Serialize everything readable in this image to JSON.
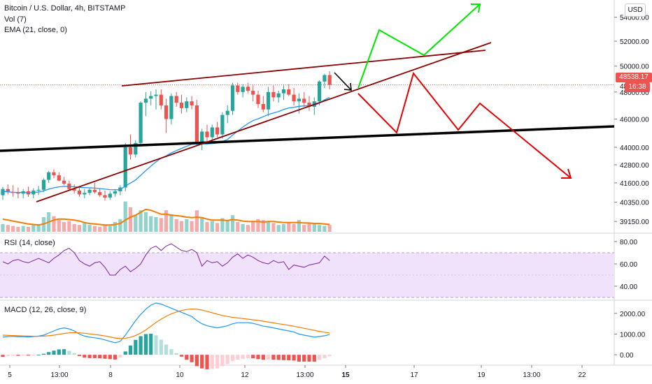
{
  "legend": {
    "main": "Bitcoin / U.S. Dollar, 4h, BITSTAMP",
    "vol": "Vol (7)",
    "ema": "EMA (21, close, 0)",
    "rsi": "RSI (14, close)",
    "macd": "MACD (12, 26, close, 9)"
  },
  "currency_button": "USD",
  "last_price_label": "48538.17",
  "countdown_label": "16:38",
  "colors": {
    "up": "#26a69a",
    "down": "#ef5350",
    "ema": "#2196f3",
    "vol_ma": "#f57c00",
    "rsi": "#7b1fa2",
    "rsi_band": "#f1e2fb",
    "macd": "#2196f3",
    "signal": "#f57c00",
    "trendline_dark_red": "#8b0000",
    "support": "#000000",
    "bull_path": "#00e600",
    "bear_path": "#e60000",
    "arrow": "#000000"
  },
  "price_axis": {
    "ticks": [
      "54000.00",
      "52000.00",
      "50000.00",
      "48000.00",
      "46000.00",
      "44000.00",
      "42800.00",
      "41600.00",
      "40350.00",
      "39150.00"
    ],
    "partial_tick_labels": [
      "5",
      "48"
    ]
  },
  "rsi_axis": {
    "ticks": [
      "80.00",
      "60.00",
      "40.00"
    ],
    "band": [
      30,
      70
    ]
  },
  "macd_axis": {
    "ticks": [
      "2000.00",
      "1000.00",
      "0.00"
    ]
  },
  "time_axis": {
    "labels": [
      "5",
      "13:00",
      "8",
      "10",
      "12",
      "13:00",
      "15",
      "17",
      "19",
      "13:00",
      "22"
    ],
    "bold": [
      "15"
    ]
  },
  "chart_data": [
    {
      "type": "candlestick",
      "title": "Bitcoin / U.S. Dollar, 4h, BITSTAMP",
      "y_scale": "log",
      "ylim": [
        38600,
        55000
      ],
      "candles": [
        [
          40800,
          41350,
          40500,
          41200
        ],
        [
          41200,
          41500,
          40850,
          41000
        ],
        [
          41000,
          41450,
          40700,
          40950
        ],
        [
          40950,
          41300,
          40600,
          40900
        ],
        [
          40900,
          41200,
          40600,
          41050
        ],
        [
          41050,
          41350,
          40700,
          40850
        ],
        [
          40850,
          41250,
          40600,
          41100
        ],
        [
          41100,
          41400,
          40800,
          41150
        ],
        [
          41150,
          41900,
          41000,
          41800
        ],
        [
          41800,
          42400,
          41600,
          42300
        ],
        [
          42300,
          42500,
          41900,
          42100
        ],
        [
          42100,
          42300,
          41700,
          41750
        ],
        [
          41750,
          42000,
          41450,
          41550
        ],
        [
          41550,
          41750,
          41150,
          41200
        ],
        [
          41200,
          41500,
          40900,
          41100
        ],
        [
          41100,
          41300,
          40700,
          40850
        ],
        [
          40850,
          41200,
          40600,
          40950
        ],
        [
          40950,
          41300,
          40800,
          41150
        ],
        [
          41150,
          41600,
          40900,
          41000
        ],
        [
          41000,
          41250,
          40700,
          40800
        ],
        [
          40800,
          41100,
          40450,
          40650
        ],
        [
          40650,
          41050,
          40500,
          40900
        ],
        [
          40900,
          41200,
          40700,
          41050
        ],
        [
          41050,
          41450,
          40800,
          41300
        ],
        [
          41300,
          44300,
          41050,
          44000
        ],
        [
          44000,
          44900,
          43150,
          43500
        ],
        [
          43500,
          44500,
          43300,
          44300
        ],
        [
          44300,
          47300,
          44100,
          47200
        ],
        [
          47200,
          48000,
          46200,
          47500
        ],
        [
          47500,
          48050,
          47000,
          47700
        ],
        [
          47700,
          48200,
          46700,
          47800
        ],
        [
          47800,
          48200,
          46700,
          47000
        ],
        [
          47000,
          47500,
          45000,
          46000
        ],
        [
          46000,
          47900,
          45600,
          47700
        ],
        [
          47700,
          48000,
          46900,
          47200
        ],
        [
          47200,
          47800,
          46400,
          46800
        ],
        [
          46800,
          47600,
          46500,
          47300
        ],
        [
          47300,
          47700,
          46700,
          47000
        ],
        [
          47000,
          47400,
          44100,
          44200
        ],
        [
          44200,
          45300,
          43800,
          45100
        ],
        [
          45100,
          45600,
          44400,
          44700
        ],
        [
          44700,
          45600,
          44300,
          45400
        ],
        [
          45400,
          45800,
          44700,
          44900
        ],
        [
          44900,
          46500,
          44600,
          46300
        ],
        [
          46300,
          47000,
          45700,
          46600
        ],
        [
          46600,
          48700,
          46300,
          48500
        ],
        [
          48500,
          48700,
          47800,
          48000
        ],
        [
          48000,
          48600,
          47600,
          48400
        ],
        [
          48400,
          48700,
          47900,
          48100
        ],
        [
          48100,
          48500,
          47300,
          47800
        ],
        [
          47800,
          48100,
          46800,
          47100
        ],
        [
          47100,
          47700,
          46500,
          46700
        ],
        [
          46700,
          48400,
          46200,
          48000
        ],
        [
          48000,
          48500,
          47300,
          47600
        ],
        [
          47600,
          48100,
          47200,
          47900
        ],
        [
          47900,
          48500,
          47400,
          48200
        ],
        [
          48200,
          48600,
          47700,
          47800
        ],
        [
          47800,
          48300,
          47000,
          47300
        ],
        [
          47300,
          47900,
          46400,
          47500
        ],
        [
          47500,
          48000,
          46900,
          47200
        ],
        [
          47200,
          47700,
          46600,
          46900
        ],
        [
          46900,
          47600,
          46300,
          47300
        ],
        [
          47300,
          48900,
          47000,
          48800
        ],
        [
          48800,
          49400,
          48300,
          49300
        ],
        [
          49300,
          49600,
          48200,
          48538
        ]
      ],
      "ema_21": [
        41050,
        41020,
        40990,
        40970,
        40980,
        40960,
        40980,
        41000,
        41080,
        41190,
        41280,
        41340,
        41370,
        41360,
        41350,
        41310,
        41290,
        41280,
        41260,
        41230,
        41190,
        41160,
        41150,
        41160,
        41400,
        41590,
        41790,
        42100,
        42410,
        42710,
        43000,
        43250,
        43410,
        43610,
        43770,
        43920,
        44070,
        44210,
        44220,
        44230,
        44230,
        44260,
        44290,
        44410,
        44540,
        44850,
        45130,
        45420,
        45670,
        45890,
        46020,
        46170,
        46330,
        46440,
        46550,
        46700,
        46810,
        46860,
        46930,
        46960,
        46980,
        47010,
        47180,
        47410,
        47600
      ]
    },
    {
      "type": "bar",
      "title": "Vol (7)",
      "volume_relative": [
        0.16,
        0.14,
        0.12,
        0.1,
        0.12,
        0.1,
        0.14,
        0.16,
        0.3,
        0.4,
        0.32,
        0.24,
        0.2,
        0.22,
        0.16,
        0.14,
        0.18,
        0.14,
        0.12,
        0.1,
        0.14,
        0.12,
        0.2,
        0.26,
        0.62,
        0.5,
        0.34,
        0.44,
        0.4,
        0.32,
        0.3,
        0.28,
        0.44,
        0.36,
        0.26,
        0.22,
        0.26,
        0.22,
        0.44,
        0.3,
        0.2,
        0.22,
        0.18,
        0.28,
        0.24,
        0.34,
        0.2,
        0.16,
        0.14,
        0.2,
        0.26,
        0.24,
        0.22,
        0.18,
        0.14,
        0.16,
        0.2,
        0.16,
        0.24,
        0.14,
        0.18,
        0.16,
        0.14,
        0.12,
        0.14
      ],
      "volume_ma_7_relative": [
        0.26,
        0.24,
        0.22,
        0.2,
        0.18,
        0.16,
        0.15,
        0.14,
        0.16,
        0.2,
        0.24,
        0.26,
        0.26,
        0.25,
        0.24,
        0.22,
        0.19,
        0.17,
        0.16,
        0.15,
        0.14,
        0.14,
        0.15,
        0.17,
        0.24,
        0.3,
        0.34,
        0.4,
        0.46,
        0.44,
        0.4,
        0.36,
        0.36,
        0.34,
        0.33,
        0.32,
        0.3,
        0.29,
        0.3,
        0.29,
        0.26,
        0.24,
        0.24,
        0.24,
        0.23,
        0.25,
        0.24,
        0.22,
        0.21,
        0.21,
        0.21,
        0.2,
        0.21,
        0.21,
        0.2,
        0.19,
        0.19,
        0.19,
        0.19,
        0.18,
        0.18,
        0.17,
        0.17,
        0.16,
        0.15
      ]
    },
    {
      "type": "line",
      "title": "RSI (14, close)",
      "ylim": [
        30,
        85
      ],
      "values": [
        62,
        60,
        63,
        64,
        62,
        61,
        63,
        65,
        63,
        61,
        65,
        68,
        72,
        74,
        70,
        63,
        60,
        58,
        61,
        62,
        57,
        50,
        50,
        55,
        58,
        53,
        56,
        60,
        68,
        74,
        76,
        72,
        76,
        78,
        75,
        72,
        71,
        73,
        70,
        58,
        63,
        61,
        62,
        58,
        61,
        66,
        69,
        65,
        68,
        66,
        63,
        61,
        60,
        63,
        61,
        62,
        55,
        59,
        58,
        57,
        59,
        60,
        61,
        67,
        63
      ]
    },
    {
      "type": "line",
      "title": "MACD (12, 26, close, 9)",
      "ylim": [
        -400,
        2500
      ],
      "x_axis_labels": [
        "5",
        "13:00",
        "8",
        "10",
        "12",
        "13:00",
        "15",
        "17",
        "19",
        "13:00",
        "22"
      ],
      "macd": [
        850,
        880,
        890,
        870,
        880,
        860,
        880,
        900,
        950,
        1050,
        1150,
        1250,
        1300,
        1250,
        1150,
        1000,
        900,
        850,
        820,
        780,
        720,
        650,
        580,
        650,
        950,
        1300,
        1650,
        1950,
        2200,
        2400,
        2500,
        2450,
        2350,
        2250,
        2150,
        2050,
        1950,
        1850,
        1650,
        1500,
        1400,
        1350,
        1300,
        1350,
        1400,
        1500,
        1550,
        1550,
        1550,
        1520,
        1450,
        1380,
        1350,
        1300,
        1250,
        1200,
        1150,
        1100,
        1000,
        950,
        900,
        850,
        880,
        920,
        980
      ],
      "signal": [
        950,
        940,
        930,
        920,
        910,
        900,
        895,
        895,
        900,
        920,
        950,
        990,
        1030,
        1060,
        1070,
        1060,
        1040,
        1010,
        980,
        950,
        910,
        860,
        810,
        780,
        790,
        850,
        930,
        1050,
        1200,
        1380,
        1560,
        1720,
        1860,
        1980,
        2070,
        2140,
        2190,
        2210,
        2200,
        2160,
        2100,
        2030,
        1960,
        1900,
        1850,
        1810,
        1780,
        1750,
        1720,
        1690,
        1660,
        1620,
        1580,
        1540,
        1500,
        1460,
        1420,
        1380,
        1330,
        1280,
        1230,
        1180,
        1130,
        1090,
        1050
      ],
      "histogram": [
        -100,
        -60,
        -40,
        -50,
        -30,
        -40,
        -15,
        5,
        50,
        130,
        200,
        260,
        270,
        190,
        80,
        -60,
        -140,
        -160,
        -160,
        -170,
        -190,
        -210,
        -230,
        -130,
        160,
        450,
        720,
        900,
        1000,
        1020,
        940,
        730,
        490,
        270,
        80,
        -90,
        -240,
        -360,
        -550,
        -660,
        -700,
        -680,
        -660,
        -550,
        -450,
        -310,
        -230,
        -200,
        -170,
        -170,
        -210,
        -240,
        -230,
        -240,
        -250,
        -260,
        -270,
        -280,
        -330,
        -330,
        -330,
        -330,
        -250,
        -170,
        -70
      ]
    }
  ],
  "annotations": [
    {
      "kind": "rising-wedge-upper-line",
      "color": "trendline_dark_red"
    },
    {
      "kind": "rising-wedge-lower-line",
      "color": "trendline_dark_red"
    },
    {
      "kind": "horizontal-support-line",
      "color": "support"
    },
    {
      "kind": "bullish-projection-path",
      "color": "bull_path"
    },
    {
      "kind": "bearish-projection-path",
      "color": "bear_path"
    },
    {
      "kind": "breakdown-arrow",
      "color": "arrow"
    }
  ]
}
